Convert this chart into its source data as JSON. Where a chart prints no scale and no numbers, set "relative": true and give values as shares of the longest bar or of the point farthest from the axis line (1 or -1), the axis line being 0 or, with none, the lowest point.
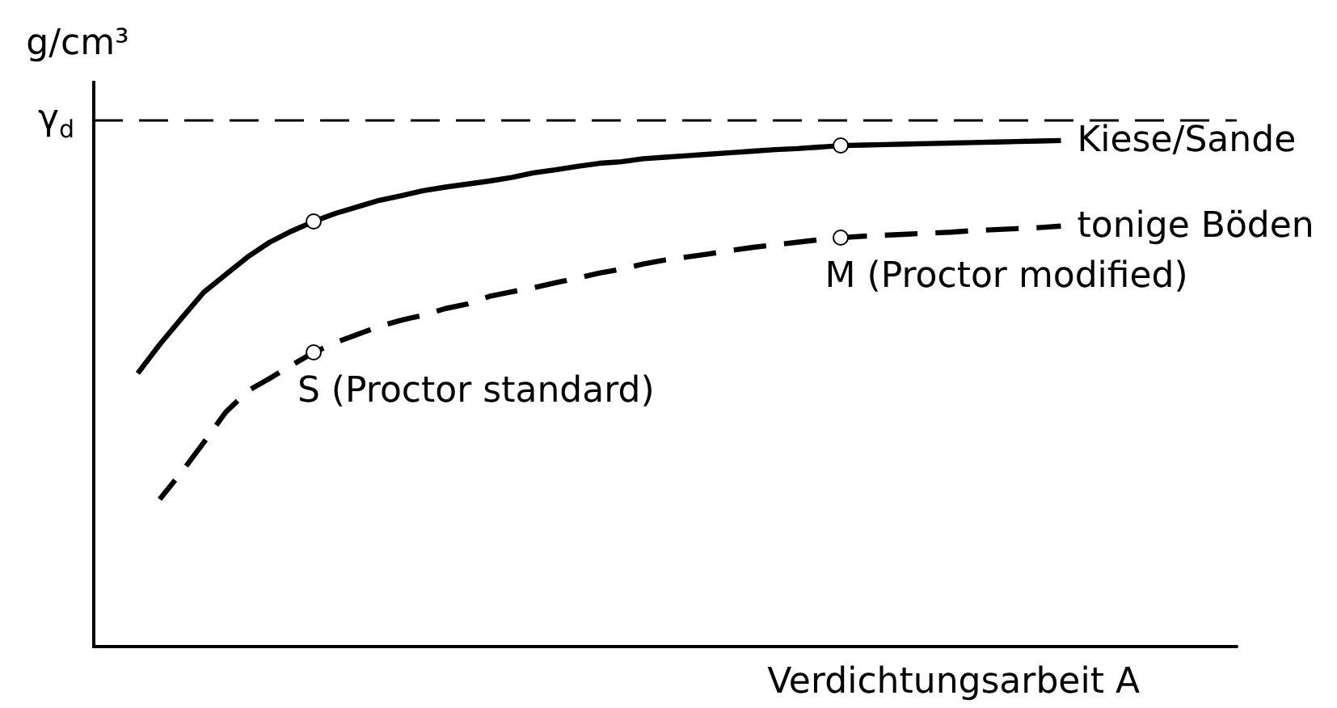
{
  "chart_data": {
    "type": "line",
    "relative": true,
    "ylabel": "g/cm³",
    "xlabel": "Verdichtungsarbeit A",
    "categories": [
      null,
      null,
      null,
      null,
      null,
      null,
      null,
      null,
      null,
      null,
      null,
      null,
      null,
      null,
      null,
      null,
      null,
      null,
      null,
      null,
      null,
      null,
      null,
      null,
      null,
      null,
      null,
      null,
      null,
      null,
      null,
      null,
      null,
      null,
      null,
      null,
      null,
      null,
      null,
      null,
      null,
      null,
      null,
      null,
      null,
      null,
      null,
      null,
      null,
      null,
      null,
      null,
      null
    ],
    "series": [
      {
        "name": "Kiese/Sande",
        "color": "#000000",
        "line_style": "solid",
        "values": [
          null,
          null,
          0.54,
          0.597,
          0.649,
          0.7,
          0.735,
          0.77,
          0.799,
          0.821,
          0.84,
          0.856,
          0.869,
          0.882,
          0.891,
          0.901,
          0.908,
          0.914,
          0.92,
          0.927,
          0.936,
          0.942,
          0.949,
          0.955,
          0.958,
          0.964,
          0.967,
          0.97,
          0.973,
          0.976,
          0.979,
          0.982,
          0.984,
          0.987,
          0.99,
          0.991,
          0.992,
          0.993,
          0.994,
          0.995,
          0.996,
          0.997,
          0.998,
          0.999,
          1,
          null,
          null,
          null,
          null,
          null,
          null,
          null,
          null
        ]
      },
      {
        "name": "tonige Böden",
        "color": "#000000",
        "line_style": "dashed",
        "values": [
          null,
          null,
          null,
          0.291,
          0.345,
          0.403,
          0.463,
          0.505,
          0.53,
          0.556,
          0.581,
          0.601,
          0.617,
          0.633,
          0.645,
          0.655,
          0.668,
          0.677,
          0.692,
          0.701,
          0.709,
          0.719,
          0.728,
          0.738,
          0.746,
          0.756,
          0.764,
          0.77,
          0.776,
          0.783,
          0.789,
          0.794,
          0.799,
          0.804,
          0.808,
          0.811,
          0.813,
          0.815,
          0.817,
          0.819,
          0.822,
          0.824,
          0.826,
          0.828,
          0.831,
          null,
          null,
          null,
          null,
          null,
          null,
          null,
          null
        ]
      }
    ],
    "ref_lines": [
      {
        "axis": "y",
        "value": 1.04,
        "label": "γ$_{d}$",
        "color": "#000000",
        "line_style": "dashed"
      }
    ],
    "annotations": [
      "S (Proctor standard)",
      "M (Proctor modified)"
    ]
  }
}
